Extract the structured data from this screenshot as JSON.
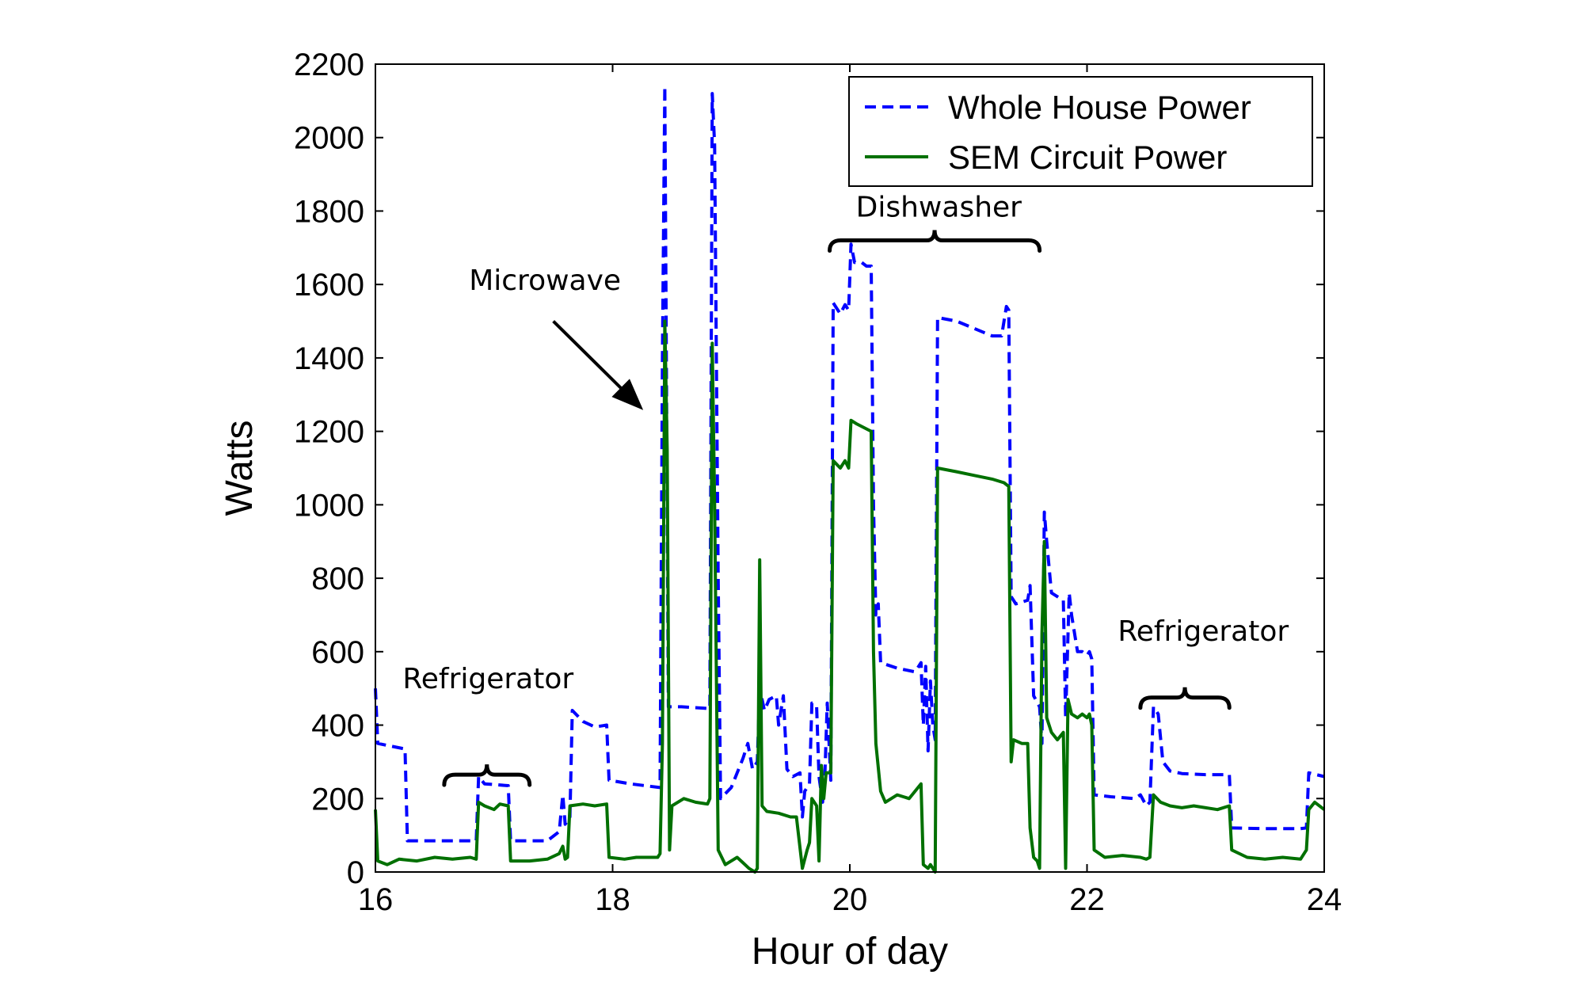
{
  "chart_data": {
    "type": "line",
    "title": "",
    "xlabel": "Hour of day",
    "ylabel": "Watts",
    "xlim": [
      16,
      24
    ],
    "ylim": [
      0,
      2200
    ],
    "xticks": [
      16,
      18,
      20,
      22,
      24
    ],
    "yticks": [
      0,
      200,
      400,
      600,
      800,
      1000,
      1200,
      1400,
      1600,
      1800,
      2000,
      2200
    ],
    "grid": false,
    "legend_position": "top-right",
    "colors": {
      "whole": "#0000ff",
      "sem": "#007000"
    },
    "series": [
      {
        "name": "Whole House Power",
        "style": "dashed",
        "color": "#0000ff",
        "points": [
          [
            16.0,
            500
          ],
          [
            16.02,
            350
          ],
          [
            16.25,
            335
          ],
          [
            16.27,
            85
          ],
          [
            16.85,
            85
          ],
          [
            16.87,
            260
          ],
          [
            16.92,
            240
          ],
          [
            17.12,
            235
          ],
          [
            17.14,
            85
          ],
          [
            17.45,
            85
          ],
          [
            17.55,
            110
          ],
          [
            17.58,
            210
          ],
          [
            17.6,
            130
          ],
          [
            17.64,
            150
          ],
          [
            17.66,
            440
          ],
          [
            17.75,
            410
          ],
          [
            17.85,
            395
          ],
          [
            17.95,
            400
          ],
          [
            17.97,
            250
          ],
          [
            18.15,
            240
          ],
          [
            18.4,
            230
          ],
          [
            18.42,
            1400
          ],
          [
            18.44,
            2140
          ],
          [
            18.46,
            1000
          ],
          [
            18.47,
            450
          ],
          [
            18.58,
            450
          ],
          [
            18.82,
            445
          ],
          [
            18.84,
            2120
          ],
          [
            18.86,
            1980
          ],
          [
            18.89,
            800
          ],
          [
            18.91,
            200
          ],
          [
            19.0,
            230
          ],
          [
            19.1,
            310
          ],
          [
            19.14,
            350
          ],
          [
            19.18,
            280
          ],
          [
            19.22,
            300
          ],
          [
            19.24,
            500
          ],
          [
            19.28,
            440
          ],
          [
            19.32,
            470
          ],
          [
            19.38,
            480
          ],
          [
            19.4,
            400
          ],
          [
            19.44,
            480
          ],
          [
            19.47,
            280
          ],
          [
            19.52,
            260
          ],
          [
            19.58,
            270
          ],
          [
            19.6,
            150
          ],
          [
            19.62,
            220
          ],
          [
            19.66,
            240
          ],
          [
            19.68,
            460
          ],
          [
            19.72,
            450
          ],
          [
            19.74,
            260
          ],
          [
            19.77,
            190
          ],
          [
            19.79,
            270
          ],
          [
            19.81,
            460
          ],
          [
            19.84,
            250
          ],
          [
            19.86,
            1550
          ],
          [
            19.92,
            1520
          ],
          [
            19.96,
            1545
          ],
          [
            19.99,
            1530
          ],
          [
            20.01,
            1710
          ],
          [
            20.04,
            1660
          ],
          [
            20.1,
            1660
          ],
          [
            20.14,
            1650
          ],
          [
            20.18,
            1650
          ],
          [
            20.2,
            1000
          ],
          [
            20.22,
            700
          ],
          [
            20.24,
            730
          ],
          [
            20.26,
            570
          ],
          [
            20.4,
            555
          ],
          [
            20.55,
            545
          ],
          [
            20.6,
            570
          ],
          [
            20.62,
            400
          ],
          [
            20.64,
            560
          ],
          [
            20.66,
            330
          ],
          [
            20.68,
            520
          ],
          [
            20.7,
            400
          ],
          [
            20.72,
            360
          ],
          [
            20.74,
            1510
          ],
          [
            20.9,
            1500
          ],
          [
            21.05,
            1480
          ],
          [
            21.2,
            1460
          ],
          [
            21.28,
            1460
          ],
          [
            21.3,
            1500
          ],
          [
            21.32,
            1540
          ],
          [
            21.34,
            1530
          ],
          [
            21.36,
            750
          ],
          [
            21.4,
            730
          ],
          [
            21.5,
            740
          ],
          [
            21.52,
            780
          ],
          [
            21.55,
            480
          ],
          [
            21.6,
            450
          ],
          [
            21.62,
            350
          ],
          [
            21.64,
            980
          ],
          [
            21.66,
            900
          ],
          [
            21.7,
            760
          ],
          [
            21.75,
            750
          ],
          [
            21.8,
            740
          ],
          [
            21.82,
            420
          ],
          [
            21.85,
            760
          ],
          [
            21.87,
            700
          ],
          [
            21.9,
            640
          ],
          [
            21.92,
            600
          ],
          [
            21.96,
            600
          ],
          [
            22.0,
            590
          ],
          [
            22.02,
            600
          ],
          [
            22.04,
            580
          ],
          [
            22.06,
            210
          ],
          [
            22.2,
            205
          ],
          [
            22.4,
            200
          ],
          [
            22.45,
            210
          ],
          [
            22.5,
            180
          ],
          [
            22.53,
            190
          ],
          [
            22.56,
            450
          ],
          [
            22.6,
            430
          ],
          [
            22.64,
            300
          ],
          [
            22.7,
            275
          ],
          [
            22.8,
            268
          ],
          [
            23.0,
            265
          ],
          [
            23.2,
            265
          ],
          [
            23.22,
            120
          ],
          [
            23.5,
            118
          ],
          [
            23.8,
            118
          ],
          [
            23.85,
            120
          ],
          [
            23.87,
            270
          ],
          [
            24.0,
            260
          ]
        ]
      },
      {
        "name": "SEM Circuit Power",
        "style": "solid",
        "color": "#007000",
        "points": [
          [
            16.0,
            170
          ],
          [
            16.02,
            30
          ],
          [
            16.1,
            20
          ],
          [
            16.2,
            35
          ],
          [
            16.35,
            30
          ],
          [
            16.5,
            40
          ],
          [
            16.65,
            35
          ],
          [
            16.8,
            40
          ],
          [
            16.85,
            35
          ],
          [
            16.87,
            190
          ],
          [
            16.92,
            180
          ],
          [
            17.0,
            170
          ],
          [
            17.05,
            185
          ],
          [
            17.12,
            180
          ],
          [
            17.14,
            30
          ],
          [
            17.3,
            30
          ],
          [
            17.45,
            35
          ],
          [
            17.55,
            50
          ],
          [
            17.58,
            70
          ],
          [
            17.6,
            35
          ],
          [
            17.62,
            40
          ],
          [
            17.64,
            180
          ],
          [
            17.75,
            185
          ],
          [
            17.85,
            180
          ],
          [
            17.95,
            185
          ],
          [
            17.97,
            40
          ],
          [
            18.1,
            35
          ],
          [
            18.2,
            40
          ],
          [
            18.38,
            40
          ],
          [
            18.4,
            50
          ],
          [
            18.42,
            350
          ],
          [
            18.44,
            1500
          ],
          [
            18.46,
            1150
          ],
          [
            18.48,
            60
          ],
          [
            18.5,
            180
          ],
          [
            18.6,
            200
          ],
          [
            18.7,
            190
          ],
          [
            18.8,
            185
          ],
          [
            18.82,
            200
          ],
          [
            18.84,
            1440
          ],
          [
            18.86,
            1000
          ],
          [
            18.89,
            60
          ],
          [
            18.95,
            20
          ],
          [
            19.0,
            30
          ],
          [
            19.05,
            40
          ],
          [
            19.1,
            25
          ],
          [
            19.15,
            10
          ],
          [
            19.2,
            0
          ],
          [
            19.22,
            10
          ],
          [
            19.24,
            850
          ],
          [
            19.26,
            180
          ],
          [
            19.3,
            165
          ],
          [
            19.4,
            160
          ],
          [
            19.5,
            150
          ],
          [
            19.55,
            150
          ],
          [
            19.6,
            10
          ],
          [
            19.64,
            60
          ],
          [
            19.66,
            80
          ],
          [
            19.68,
            200
          ],
          [
            19.72,
            180
          ],
          [
            19.74,
            30
          ],
          [
            19.76,
            290
          ],
          [
            19.78,
            200
          ],
          [
            19.8,
            270
          ],
          [
            19.84,
            270
          ],
          [
            19.86,
            1120
          ],
          [
            19.92,
            1100
          ],
          [
            19.96,
            1120
          ],
          [
            19.99,
            1100
          ],
          [
            20.01,
            1230
          ],
          [
            20.06,
            1220
          ],
          [
            20.12,
            1210
          ],
          [
            20.18,
            1200
          ],
          [
            20.2,
            600
          ],
          [
            20.22,
            350
          ],
          [
            20.26,
            220
          ],
          [
            20.3,
            190
          ],
          [
            20.4,
            210
          ],
          [
            20.5,
            200
          ],
          [
            20.6,
            240
          ],
          [
            20.62,
            20
          ],
          [
            20.66,
            10
          ],
          [
            20.68,
            20
          ],
          [
            20.72,
            0
          ],
          [
            20.74,
            1100
          ],
          [
            20.9,
            1090
          ],
          [
            21.05,
            1080
          ],
          [
            21.2,
            1070
          ],
          [
            21.3,
            1060
          ],
          [
            21.34,
            1050
          ],
          [
            21.36,
            300
          ],
          [
            21.38,
            360
          ],
          [
            21.45,
            350
          ],
          [
            21.5,
            350
          ],
          [
            21.52,
            120
          ],
          [
            21.55,
            40
          ],
          [
            21.58,
            30
          ],
          [
            21.6,
            10
          ],
          [
            21.62,
            650
          ],
          [
            21.64,
            900
          ],
          [
            21.66,
            420
          ],
          [
            21.7,
            380
          ],
          [
            21.75,
            360
          ],
          [
            21.8,
            380
          ],
          [
            21.82,
            10
          ],
          [
            21.84,
            470
          ],
          [
            21.87,
            430
          ],
          [
            21.92,
            420
          ],
          [
            21.96,
            430
          ],
          [
            22.0,
            420
          ],
          [
            22.02,
            430
          ],
          [
            22.04,
            400
          ],
          [
            22.06,
            60
          ],
          [
            22.15,
            40
          ],
          [
            22.3,
            45
          ],
          [
            22.45,
            40
          ],
          [
            22.5,
            35
          ],
          [
            22.53,
            40
          ],
          [
            22.56,
            210
          ],
          [
            22.62,
            190
          ],
          [
            22.7,
            180
          ],
          [
            22.8,
            175
          ],
          [
            22.9,
            180
          ],
          [
            23.0,
            175
          ],
          [
            23.1,
            170
          ],
          [
            23.2,
            180
          ],
          [
            23.22,
            60
          ],
          [
            23.35,
            40
          ],
          [
            23.5,
            35
          ],
          [
            23.65,
            40
          ],
          [
            23.8,
            35
          ],
          [
            23.85,
            60
          ],
          [
            23.87,
            170
          ],
          [
            23.92,
            190
          ],
          [
            24.0,
            170
          ]
        ]
      }
    ],
    "annotations": [
      {
        "text": "Refrigerator",
        "x": 16.95,
        "y": 500,
        "brace_from": 16.58,
        "brace_to": 17.3,
        "brace_y": 265
      },
      {
        "text": "Microwave",
        "x": 17.43,
        "y": 1585,
        "arrow_from": [
          17.5,
          1500
        ],
        "arrow_to": [
          18.22,
          1270
        ]
      },
      {
        "text": "Dishwasher",
        "x": 20.75,
        "y": 1785,
        "brace_from": 19.83,
        "brace_to": 21.6,
        "brace_y": 1720
      },
      {
        "text": "Refrigerator",
        "x": 22.98,
        "y": 630,
        "brace_from": 22.45,
        "brace_to": 23.2,
        "brace_y": 475
      }
    ]
  }
}
